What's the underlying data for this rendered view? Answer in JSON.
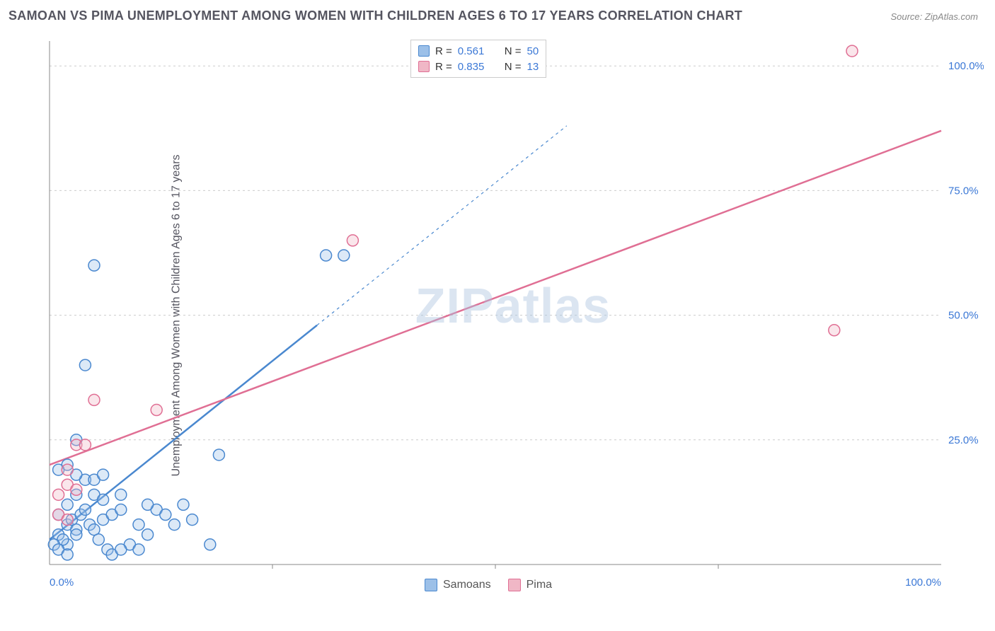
{
  "chart": {
    "type": "scatter",
    "title": "SAMOAN VS PIMA UNEMPLOYMENT AMONG WOMEN WITH CHILDREN AGES 6 TO 17 YEARS CORRELATION CHART",
    "source_label": "Source: ZipAtlas.com",
    "ylabel": "Unemployment Among Women with Children Ages 6 to 17 years",
    "watermark": "ZIPatlas",
    "xlim": [
      0,
      100
    ],
    "ylim": [
      0,
      105
    ],
    "ytick_values": [
      25,
      50,
      75,
      100
    ],
    "ytick_labels": [
      "25.0%",
      "50.0%",
      "75.0%",
      "100.0%"
    ],
    "xtick_values": [
      0,
      100
    ],
    "xtick_labels": [
      "0.0%",
      "100.0%"
    ],
    "x_inner_ticks": [
      25,
      50,
      75
    ],
    "grid_color": "#cccccc",
    "background_color": "#ffffff",
    "axis_color": "#888888",
    "tick_label_color": "#3b78d6",
    "title_color": "#555560",
    "title_fontsize": 18,
    "label_fontsize": 16,
    "tick_fontsize": 15,
    "marker_radius": 8,
    "marker_stroke_width": 1.5,
    "marker_fill_opacity": 0.35,
    "trendline_width_solid": 2.5,
    "trendline_width_dash": 1.2,
    "series": [
      {
        "name": "Samoans",
        "color_fill": "#9cc0e8",
        "color_stroke": "#4a88cf",
        "r_value": "0.561",
        "n_value": "50",
        "trendline": {
          "x1": 0,
          "y1": 5,
          "x2": 30,
          "y2": 48,
          "dash_extend_x": 58,
          "dash_extend_y": 88
        },
        "points": [
          [
            1,
            10
          ],
          [
            2,
            8
          ],
          [
            3,
            7
          ],
          [
            1,
            6
          ],
          [
            2.5,
            9
          ],
          [
            3.5,
            10
          ],
          [
            4,
            11
          ],
          [
            2,
            4
          ],
          [
            1.5,
            5
          ],
          [
            3,
            6
          ],
          [
            4.5,
            8
          ],
          [
            5,
            7
          ],
          [
            6,
            9
          ],
          [
            7,
            10
          ],
          [
            8,
            11
          ],
          [
            5.5,
            5
          ],
          [
            6.5,
            3
          ],
          [
            9,
            4
          ],
          [
            10,
            3
          ],
          [
            2,
            12
          ],
          [
            3,
            14
          ],
          [
            5,
            14
          ],
          [
            6,
            13
          ],
          [
            8,
            14
          ],
          [
            4,
            17
          ],
          [
            5,
            17
          ],
          [
            6,
            18
          ],
          [
            3,
            18
          ],
          [
            2,
            20
          ],
          [
            1,
            19
          ],
          [
            12,
            11
          ],
          [
            13,
            10
          ],
          [
            15,
            12
          ],
          [
            14,
            8
          ],
          [
            11,
            6
          ],
          [
            19,
            22
          ],
          [
            3,
            25
          ],
          [
            4,
            40
          ],
          [
            5,
            60
          ],
          [
            31,
            62
          ],
          [
            33,
            62
          ],
          [
            18,
            4
          ],
          [
            0.5,
            4
          ],
          [
            1,
            3
          ],
          [
            2,
            2
          ],
          [
            7,
            2
          ],
          [
            8,
            3
          ],
          [
            16,
            9
          ],
          [
            10,
            8
          ],
          [
            11,
            12
          ]
        ]
      },
      {
        "name": "Pima",
        "color_fill": "#f0b7c6",
        "color_stroke": "#e06f94",
        "r_value": "0.835",
        "n_value": "13",
        "trendline": {
          "x1": 0,
          "y1": 20,
          "x2": 100,
          "y2": 87
        },
        "points": [
          [
            1,
            14
          ],
          [
            2,
            16
          ],
          [
            3,
            15
          ],
          [
            3,
            24
          ],
          [
            4,
            24
          ],
          [
            2,
            19
          ],
          [
            5,
            33
          ],
          [
            12,
            31
          ],
          [
            34,
            65
          ],
          [
            88,
            47
          ],
          [
            90,
            103
          ],
          [
            1,
            10
          ],
          [
            2,
            9
          ]
        ]
      }
    ]
  }
}
